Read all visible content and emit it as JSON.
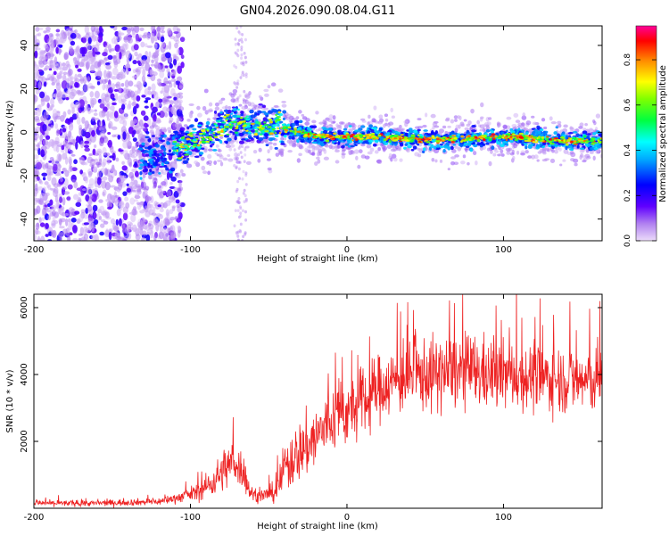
{
  "chart_data": [
    {
      "type": "heatmap",
      "title": "GN04.2026.090.08.04.G11",
      "xlabel": "Height of straight line (km)",
      "ylabel": "Frequency (Hz)",
      "xlim": [
        -200,
        163
      ],
      "ylim": [
        -50,
        49
      ],
      "x_ticks": [
        -200,
        -100,
        0,
        100
      ],
      "y_ticks": [
        -40,
        -20,
        0,
        20,
        40
      ],
      "colorbar": {
        "label": "Normalized spectral amplitude",
        "range": [
          0,
          0.95
        ],
        "ticks": [
          0.0,
          0.2,
          0.4,
          0.6,
          0.8
        ],
        "colors": [
          "#e0c8f8",
          "#8800ff",
          "#0000ff",
          "#00ffff",
          "#00ff00",
          "#ffff00",
          "#ff8800",
          "#ff0000",
          "#ff00aa"
        ]
      },
      "ridge": {
        "x": [
          -130,
          -115,
          -100,
          -90,
          -80,
          -70,
          -60,
          -50,
          -45,
          -40,
          -30,
          -20,
          -10,
          0,
          20,
          40,
          60,
          80,
          100,
          120,
          140,
          163
        ],
        "y": [
          -12,
          -10,
          -5,
          -2,
          2,
          5,
          3,
          1,
          4,
          2,
          0,
          -2,
          -2,
          -2,
          -2,
          -3,
          -3,
          -3,
          -2,
          -3,
          -4,
          -4
        ]
      }
    },
    {
      "type": "line",
      "xlabel": "Height of straight line (km)",
      "ylabel": "SNR (10 * v/v)",
      "xlim": [
        -200,
        163
      ],
      "ylim": [
        0,
        6400
      ],
      "x_ticks": [
        -200,
        -100,
        0,
        100
      ],
      "y_ticks": [
        2000,
        4000,
        6000
      ],
      "series": [
        {
          "name": "SNR",
          "color": "#ee2222",
          "x": [
            -200,
            -160,
            -120,
            -105,
            -95,
            -85,
            -78,
            -72,
            -66,
            -62,
            -58,
            -52,
            -45,
            -40,
            -35,
            -30,
            -25,
            -20,
            -15,
            -10,
            -5,
            0,
            5,
            10,
            15,
            20,
            30,
            40,
            50,
            60,
            70,
            80,
            90,
            100,
            110,
            120,
            130,
            140,
            150,
            163
          ],
          "y": [
            150,
            150,
            200,
            350,
            500,
            800,
            1200,
            1400,
            1100,
            500,
            350,
            400,
            500,
            1200,
            1500,
            1700,
            1900,
            2100,
            2400,
            2600,
            2900,
            2800,
            3000,
            3100,
            3300,
            3600,
            3800,
            3900,
            4000,
            4000,
            4100,
            4100,
            4000,
            4000,
            3950,
            3900,
            3900,
            3850,
            3800,
            3800
          ],
          "noise": [
            80,
            80,
            100,
            150,
            250,
            400,
            600,
            600,
            500,
            250,
            150,
            200,
            300,
            700,
            800,
            800,
            900,
            900,
            900,
            900,
            900,
            900,
            900,
            900,
            900,
            900,
            900,
            900,
            1000,
            1000,
            1000,
            1000,
            1000,
            900,
            900,
            900,
            900,
            900,
            900,
            900
          ]
        }
      ]
    }
  ]
}
